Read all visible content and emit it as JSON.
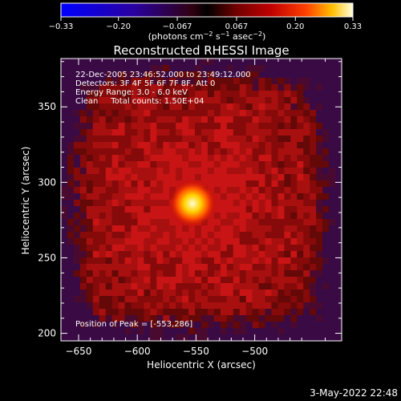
{
  "chart_data": {
    "type": "heatmap",
    "title": "Reconstructed RHESSI Image",
    "xlabel": "Heliocentric X (arcsec)",
    "ylabel": "Heliocentric Y (arcsec)",
    "xlim": [
      -665,
      -426
    ],
    "ylim": [
      195,
      382
    ],
    "xticks": [
      -650,
      -600,
      -550,
      -500
    ],
    "yticks": [
      200,
      250,
      300,
      350
    ],
    "colorbar": {
      "ticks": [
        -0.33,
        -0.2,
        -0.067,
        0.067,
        0.2,
        0.33
      ],
      "tick_labels": [
        "−0.33",
        "−0.20",
        "−0.067",
        "0.067",
        "0.20",
        "0.33"
      ],
      "range": [
        -0.33,
        0.33
      ],
      "unit_prefix": "(photons cm",
      "unit_exp1": "−2",
      "unit_mid": " s",
      "unit_exp2": "−1",
      "unit_mid2": " asec",
      "unit_exp3": "−2",
      "unit_suffix": ")"
    },
    "annotations": [
      "22-Dec-2005 23:46:52.000 to 23:49:12.000",
      "Detectors: 3F 4F 5F 6F 7F 8F, Att 0",
      "Energy Range: 3.0 - 6.0 keV",
      "Clean     Total counts: 1.50E+04"
    ],
    "peak_label": "Position of Peak = [-553,286]",
    "peak": {
      "x": -553,
      "y": 286,
      "value": 0.33
    }
  },
  "timestamp": "3-May-2022 22:48"
}
